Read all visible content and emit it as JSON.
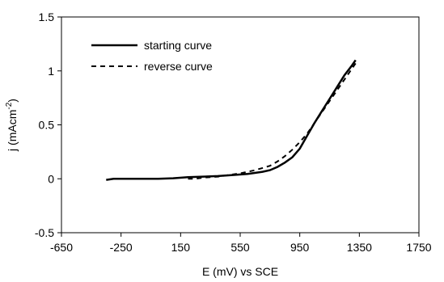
{
  "chart_data": {
    "type": "line",
    "title": "",
    "xlabel": "E (mV) vs SCE",
    "ylabel_main": "j (mAcm",
    "ylabel_sup": "-2",
    "ylabel_close": ")",
    "xlim": [
      -650,
      1750
    ],
    "ylim": [
      -0.5,
      1.5
    ],
    "xticks": [
      -650,
      -250,
      150,
      550,
      950,
      1350,
      1750
    ],
    "xtick_labels": [
      "-650",
      "-250",
      "150",
      "550",
      "950",
      "1350",
      "1750"
    ],
    "yticks": [
      -0.5,
      0,
      0.5,
      1,
      1.5
    ],
    "ytick_labels": [
      "-0.5",
      "0",
      "0.5",
      "1",
      "1.5"
    ],
    "grid": false,
    "legend_position": "top-left",
    "series": [
      {
        "name": "starting curve",
        "style": "solid",
        "color": "#000000",
        "points": [
          [
            -350,
            -0.01
          ],
          [
            -300,
            0.0
          ],
          [
            -200,
            0.0
          ],
          [
            0,
            0.0
          ],
          [
            100,
            0.005
          ],
          [
            200,
            0.015
          ],
          [
            300,
            0.02
          ],
          [
            400,
            0.025
          ],
          [
            500,
            0.035
          ],
          [
            600,
            0.045
          ],
          [
            700,
            0.065
          ],
          [
            750,
            0.08
          ],
          [
            800,
            0.11
          ],
          [
            850,
            0.15
          ],
          [
            900,
            0.2
          ],
          [
            950,
            0.28
          ],
          [
            1000,
            0.4
          ],
          [
            1050,
            0.52
          ],
          [
            1100,
            0.63
          ],
          [
            1150,
            0.74
          ],
          [
            1200,
            0.85
          ],
          [
            1250,
            0.96
          ],
          [
            1300,
            1.05
          ],
          [
            1325,
            1.1
          ]
        ]
      },
      {
        "name": "reverse curve",
        "style": "dashed",
        "color": "#000000",
        "points": [
          [
            1325,
            1.07
          ],
          [
            1300,
            1.02
          ],
          [
            1250,
            0.92
          ],
          [
            1200,
            0.82
          ],
          [
            1150,
            0.72
          ],
          [
            1100,
            0.62
          ],
          [
            1050,
            0.52
          ],
          [
            1000,
            0.42
          ],
          [
            950,
            0.34
          ],
          [
            900,
            0.27
          ],
          [
            850,
            0.21
          ],
          [
            800,
            0.16
          ],
          [
            750,
            0.12
          ],
          [
            700,
            0.1
          ],
          [
            650,
            0.08
          ],
          [
            600,
            0.065
          ],
          [
            550,
            0.05
          ],
          [
            500,
            0.04
          ],
          [
            450,
            0.03
          ],
          [
            400,
            0.02
          ],
          [
            300,
            0.01
          ],
          [
            250,
            0.0
          ],
          [
            200,
            0.0
          ]
        ]
      }
    ]
  }
}
